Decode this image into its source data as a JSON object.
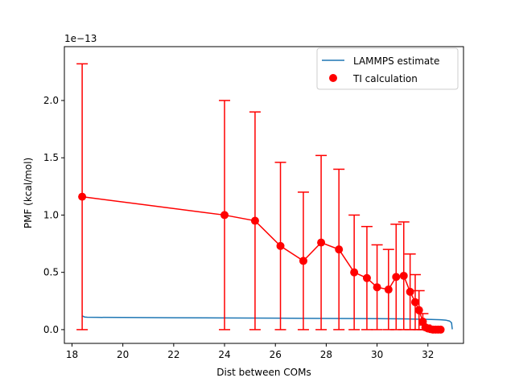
{
  "chart_data": {
    "type": "line",
    "xlabel": "Dist between COMs",
    "ylabel": "PMF (kcal/mol)",
    "y_offset_label": "1e−13",
    "xlim": [
      17.7,
      33.4
    ],
    "ylim": [
      -0.12,
      2.47
    ],
    "x_ticks": [
      18,
      20,
      22,
      24,
      26,
      28,
      30,
      32
    ],
    "x_tick_labels": [
      "18",
      "20",
      "22",
      "24",
      "26",
      "28",
      "30",
      "32"
    ],
    "y_ticks": [
      0.0,
      0.5,
      1.0,
      1.5,
      2.0
    ],
    "y_tick_labels": [
      "0.0",
      "0.5",
      "1.0",
      "1.5",
      "2.0"
    ],
    "legend_position": "top-right",
    "colors": {
      "lammps": "#1f77b4",
      "ti": "#ff0000"
    },
    "series": [
      {
        "name": "LAMMPS estimate",
        "kind": "line",
        "x": [
          18.4,
          18.5,
          18.6,
          19,
          20,
          22,
          24,
          26,
          28,
          30,
          31,
          32,
          32.5,
          32.7,
          32.85,
          32.93,
          32.95,
          32.96
        ],
        "y": [
          0.12,
          0.11,
          0.108,
          0.107,
          0.106,
          0.104,
          0.102,
          0.1,
          0.098,
          0.096,
          0.094,
          0.09,
          0.086,
          0.083,
          0.075,
          0.06,
          0.02,
          0.003
        ]
      },
      {
        "name": "TI calculation",
        "kind": "points_with_errorbars",
        "x": [
          18.4,
          24.0,
          25.2,
          26.2,
          27.1,
          27.8,
          28.5,
          29.1,
          29.6,
          30.0,
          30.45,
          30.75,
          31.05,
          31.3,
          31.5,
          31.65,
          31.8,
          31.9,
          32.0,
          32.1,
          32.2,
          32.3,
          32.4,
          32.5
        ],
        "y": [
          1.16,
          1.0,
          0.95,
          0.73,
          0.6,
          0.76,
          0.7,
          0.5,
          0.45,
          0.37,
          0.35,
          0.46,
          0.47,
          0.33,
          0.24,
          0.17,
          0.07,
          0.02,
          0.01,
          0.005,
          0.0,
          0.0,
          0.0,
          0.0
        ],
        "yerr": [
          1.16,
          1.0,
          0.95,
          0.73,
          0.6,
          0.76,
          0.7,
          0.5,
          0.45,
          0.37,
          0.35,
          0.46,
          0.47,
          0.33,
          0.24,
          0.17,
          0.07,
          0.02,
          0.01,
          0.005,
          0.0,
          0.0,
          0.0,
          0.0
        ]
      }
    ]
  }
}
